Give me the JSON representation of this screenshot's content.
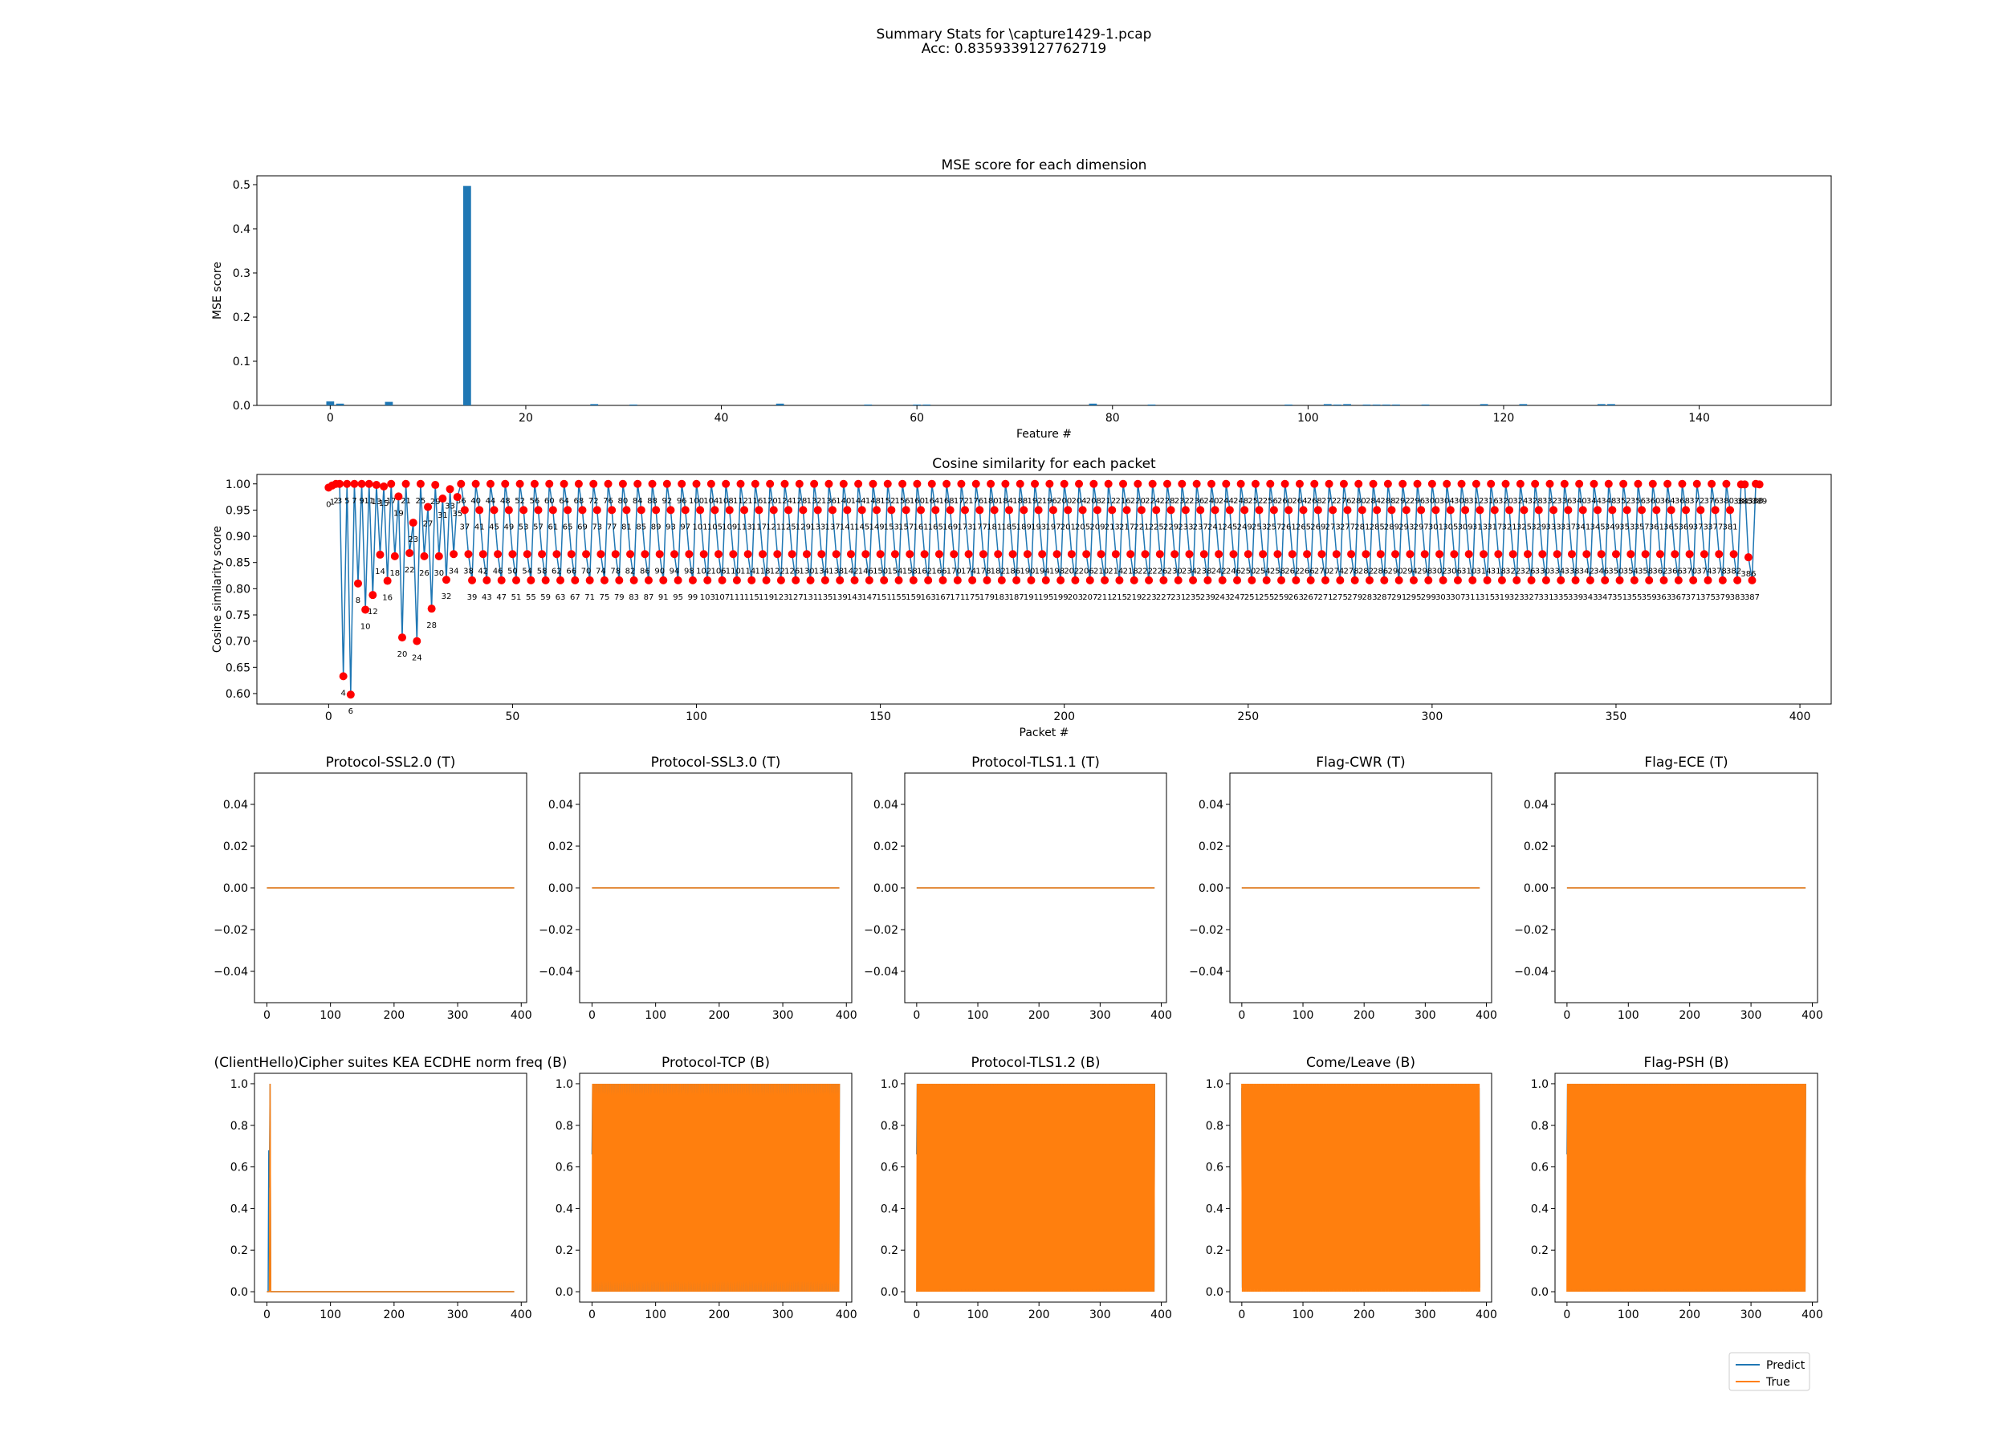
{
  "figure": {
    "title_line1": "Summary Stats for \\capture1429-1.pcap",
    "title_line2": "Acc: 0.8359339127762719"
  },
  "colors": {
    "predict": "#1f77b4",
    "true": "#ff7f0e",
    "marker": "#ff0000"
  },
  "legend": {
    "location": "lower-right",
    "entries": [
      "Predict",
      "True"
    ]
  },
  "chart_data": [
    {
      "type": "bar",
      "title": "MSE score for each dimension",
      "xlabel": "Feature #",
      "ylabel": "MSE score",
      "xlim": [
        -7.5,
        153.5
      ],
      "ylim": [
        0,
        0.52
      ],
      "xticks": [
        0,
        20,
        40,
        60,
        80,
        100,
        120,
        140
      ],
      "yticks": [
        0.0,
        0.1,
        0.2,
        0.3,
        0.4,
        0.5
      ],
      "ytick_labels": [
        "0.0",
        "0.1",
        "0.2",
        "0.3",
        "0.4",
        "0.5"
      ],
      "x": [
        0,
        1,
        6,
        14,
        27,
        31,
        46,
        55,
        60,
        61,
        78,
        84,
        98,
        102,
        103,
        104,
        106,
        107,
        108,
        109,
        112,
        118,
        122,
        130,
        131
      ],
      "values": [
        0.009,
        0.004,
        0.008,
        0.497,
        0.003,
        0.002,
        0.004,
        0.002,
        0.002,
        0.002,
        0.004,
        0.002,
        0.002,
        0.003,
        0.002,
        0.003,
        0.002,
        0.002,
        0.002,
        0.002,
        0.002,
        0.003,
        0.003,
        0.003,
        0.003
      ]
    },
    {
      "type": "line",
      "title": "Cosine similarity for each packet",
      "xlabel": "Packet #",
      "ylabel": "Cosine similarity score",
      "xlim": [
        -19.5,
        408.5
      ],
      "ylim": [
        0.58,
        1.018
      ],
      "xticks": [
        0,
        50,
        100,
        150,
        200,
        250,
        300,
        350,
        400
      ],
      "yticks": [
        0.6,
        0.65,
        0.7,
        0.75,
        0.8,
        0.85,
        0.9,
        0.95,
        1.0
      ],
      "ytick_labels": [
        "0.60",
        "0.65",
        "0.70",
        "0.75",
        "0.80",
        "0.85",
        "0.90",
        "0.95",
        "1.00"
      ],
      "marker": "red dots with packet index annotations",
      "n_points": 390,
      "early_y": [
        0.993,
        0.997,
        1.0,
        1.0,
        0.633,
        1.0,
        0.598,
        1.0,
        0.81,
        1.0,
        0.76,
        1.0,
        0.788,
        0.998,
        0.865,
        0.995,
        0.815,
        1.0,
        0.862,
        0.976,
        0.707,
        1.0,
        0.868,
        0.926,
        0.7,
        1.0,
        0.862,
        0.956,
        0.762,
        0.998,
        0.862,
        0.972,
        0.817,
        0.99,
        0.866,
        0.975
      ],
      "steady_pattern": [
        1.0,
        0.95,
        0.866,
        0.816
      ],
      "last_y": [
        0.999,
        0.999,
        0.86,
        0.816,
        1.0,
        0.999
      ]
    }
  ],
  "small_multiples": [
    {
      "title": "Protocol-SSL2.0 (T)",
      "kind": "zero"
    },
    {
      "title": "Protocol-SSL3.0 (T)",
      "kind": "zero"
    },
    {
      "title": "Protocol-TLS1.1 (T)",
      "kind": "zero"
    },
    {
      "title": "Flag-CWR (T)",
      "kind": "zero"
    },
    {
      "title": "Flag-ECE (T)",
      "kind": "zero"
    },
    {
      "title": "(ClientHello)Cipher suites KEA ECDHE norm freq (B)",
      "kind": "spike"
    },
    {
      "title": "Protocol-TCP (B)",
      "kind": "binary"
    },
    {
      "title": "Protocol-TLS1.2 (B)",
      "kind": "binary"
    },
    {
      "title": "Come/Leave (B)",
      "kind": "binary-noisy"
    },
    {
      "title": "Flag-PSH (B)",
      "kind": "binary"
    }
  ],
  "small_axes": {
    "xlim": [
      -19.5,
      408.5
    ],
    "xticks": [
      0,
      100,
      200,
      300,
      400
    ],
    "zero_ylim": [
      -0.055,
      0.055
    ],
    "zero_yticks": [
      0.04,
      0.02,
      0.0,
      -0.02,
      -0.04
    ],
    "zero_ytick_labels": [
      "0.04",
      "0.02",
      "0.00",
      "−0.02",
      "−0.04"
    ],
    "binary_ylim": [
      -0.05,
      1.05
    ],
    "binary_yticks": [
      0.0,
      0.2,
      0.4,
      0.6,
      0.8,
      1.0
    ],
    "binary_ytick_labels": [
      "0.0",
      "0.2",
      "0.4",
      "0.6",
      "0.8",
      "1.0"
    ],
    "n_points": 390
  }
}
